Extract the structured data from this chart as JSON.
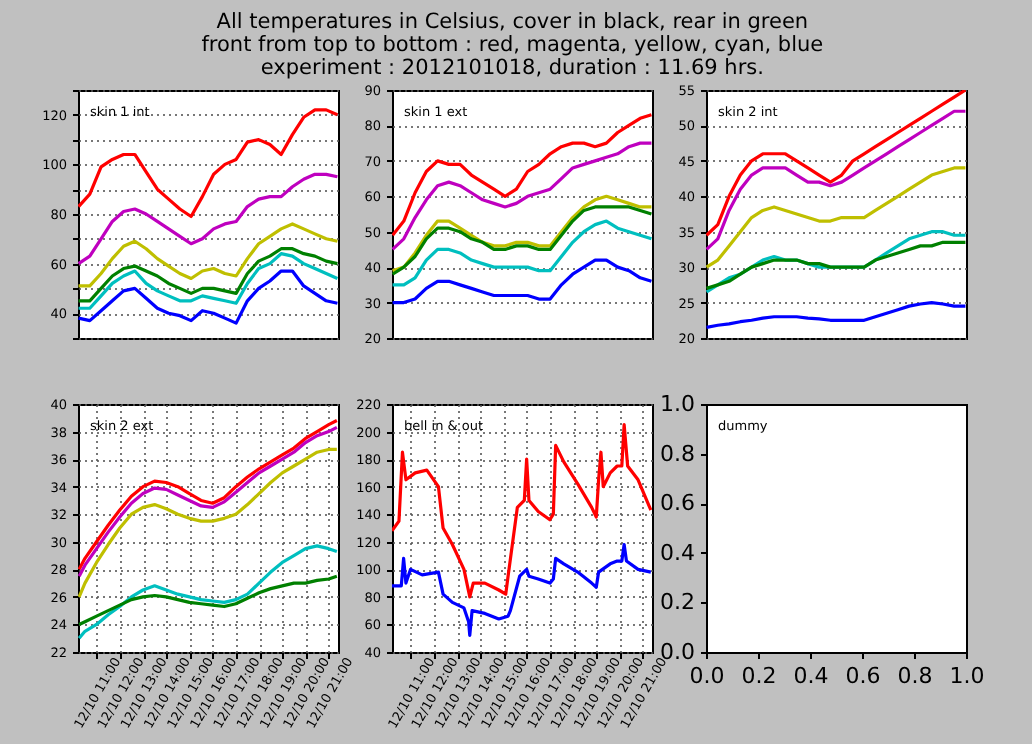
{
  "chart_data": [
    {
      "type": "line",
      "title": "skin 1 int",
      "annotations": [
        "All temperatures in Celsius, cover in black, rear in green",
        "front from top to bottom : red, magenta, yellow, cyan, blue",
        "experiment : 2012101018, duration : 11.69 hrs."
      ],
      "categories": [
        null,
        null,
        null,
        null,
        null,
        null,
        null,
        null,
        null,
        null,
        null,
        null,
        null,
        null,
        null,
        null,
        null,
        null,
        null,
        null,
        null,
        null,
        null,
        null
      ],
      "ylim": [
        30,
        130
      ],
      "yticks": [
        {
          "value": 30,
          "label": null
        },
        40,
        {
          "value": 50,
          "label": null
        },
        60,
        {
          "value": 70,
          "label": null
        },
        80,
        {
          "value": 90,
          "label": null
        },
        100,
        {
          "value": 110,
          "label": null
        },
        120,
        {
          "value": 130,
          "label": null
        }
      ],
      "grid": "y",
      "tick_labels": "y",
      "series": [
        {
          "color": "#ff0000",
          "values": [
            83,
            88,
            99,
            102,
            104,
            104,
            97,
            90,
            86,
            82,
            79,
            87,
            96,
            100,
            102,
            109,
            110,
            108,
            104,
            112,
            119,
            122,
            122,
            120
          ]
        },
        {
          "color": "#bf00bf",
          "values": [
            60,
            63,
            70,
            77,
            81,
            82,
            80,
            77,
            74,
            71,
            68,
            70,
            74,
            76,
            77,
            83,
            86,
            87,
            87,
            91,
            94,
            96,
            96,
            95
          ]
        },
        {
          "color": "#bfbf00",
          "values": [
            51,
            51,
            56,
            62,
            67,
            69,
            66,
            62,
            59,
            56,
            54,
            57,
            58,
            56,
            55,
            62,
            68,
            71,
            74,
            76,
            74,
            72,
            70,
            69
          ]
        },
        {
          "color": "#008000",
          "values": [
            45,
            45,
            50,
            55,
            58,
            59,
            57,
            55,
            52,
            50,
            48,
            50,
            50,
            49,
            48,
            56,
            61,
            63,
            66,
            66,
            64,
            63,
            61,
            60
          ]
        },
        {
          "color": "#00bfbf",
          "values": [
            42,
            42,
            47,
            52,
            55,
            57,
            52,
            49,
            47,
            45,
            45,
            47,
            46,
            45,
            44,
            52,
            58,
            60,
            64,
            63,
            60,
            58,
            56,
            54
          ]
        },
        {
          "color": "#0000ff",
          "values": [
            38,
            37,
            41,
            45,
            49,
            50,
            46,
            42,
            40,
            39,
            37,
            41,
            40,
            38,
            36,
            45,
            50,
            53,
            57,
            57,
            51,
            48,
            45,
            44
          ]
        }
      ]
    },
    {
      "type": "line",
      "title": "skin 1 ext",
      "categories": [
        null,
        null,
        null,
        null,
        null,
        null,
        null,
        null,
        null,
        null,
        null,
        null,
        null,
        null,
        null,
        null,
        null,
        null,
        null,
        null,
        null,
        null,
        null,
        null
      ],
      "ylim": [
        20,
        90
      ],
      "yticks": [
        20,
        30,
        40,
        50,
        60,
        70,
        80,
        90
      ],
      "grid": "y",
      "tick_labels": "y",
      "series": [
        {
          "color": "#ff0000",
          "values": [
            49,
            53,
            61,
            67,
            70,
            69,
            69,
            66,
            64,
            62,
            60,
            62,
            67,
            69,
            72,
            74,
            75,
            75,
            74,
            75,
            78,
            80,
            82,
            83
          ]
        },
        {
          "color": "#bf00bf",
          "values": [
            45,
            48,
            54,
            59,
            63,
            64,
            63,
            61,
            59,
            58,
            57,
            58,
            60,
            61,
            62,
            65,
            68,
            69,
            70,
            71,
            72,
            74,
            75,
            75
          ]
        },
        {
          "color": "#bfbf00",
          "values": [
            39,
            40,
            44,
            49,
            53,
            53,
            51,
            49,
            47,
            46,
            46,
            47,
            47,
            46,
            46,
            50,
            54,
            57,
            59,
            60,
            59,
            58,
            57,
            57
          ]
        },
        {
          "color": "#008000",
          "values": [
            38,
            40,
            43,
            48,
            51,
            51,
            50,
            48,
            47,
            45,
            45,
            46,
            46,
            45,
            45,
            49,
            53,
            56,
            57,
            57,
            57,
            57,
            56,
            55
          ]
        },
        {
          "color": "#00bfbf",
          "values": [
            35,
            35,
            37,
            42,
            45,
            45,
            44,
            42,
            41,
            40,
            40,
            40,
            40,
            39,
            39,
            43,
            47,
            50,
            52,
            53,
            51,
            50,
            49,
            48
          ]
        },
        {
          "color": "#0000ff",
          "values": [
            30,
            30,
            31,
            34,
            36,
            36,
            35,
            34,
            33,
            32,
            32,
            32,
            32,
            31,
            31,
            35,
            38,
            40,
            42,
            42,
            40,
            39,
            37,
            36
          ]
        }
      ]
    },
    {
      "type": "line",
      "title": "skin 2 int",
      "categories": [
        null,
        null,
        null,
        null,
        null,
        null,
        null,
        null,
        null,
        null,
        null,
        null,
        null,
        null,
        null,
        null,
        null,
        null,
        null,
        null,
        null,
        null,
        null,
        null
      ],
      "ylim": [
        20,
        55
      ],
      "yticks": [
        20,
        25,
        30,
        35,
        40,
        45,
        50,
        55
      ],
      "grid": "y",
      "tick_labels": "y",
      "series": [
        {
          "color": "#ff0000",
          "values": [
            34.5,
            36,
            40,
            43,
            45,
            46,
            46,
            46,
            45,
            44,
            43,
            42,
            43,
            45,
            46,
            47,
            48,
            49,
            50,
            51,
            52,
            53,
            54,
            55
          ]
        },
        {
          "color": "#bf00bf",
          "values": [
            32.5,
            34,
            38,
            41,
            43,
            44,
            44,
            44,
            43,
            42,
            42,
            41.5,
            42,
            43,
            44,
            45,
            46,
            47,
            48,
            49,
            50,
            51,
            52,
            52
          ]
        },
        {
          "color": "#bfbf00",
          "values": [
            30,
            31,
            33,
            35,
            37,
            38,
            38.5,
            38,
            37.5,
            37,
            36.5,
            36.5,
            37,
            37,
            37,
            38,
            39,
            40,
            41,
            42,
            43,
            43.5,
            44,
            44
          ]
        },
        {
          "color": "#00bfbf",
          "values": [
            26.5,
            27.5,
            28.5,
            29,
            30,
            31,
            31.5,
            31,
            31,
            30.5,
            30,
            30,
            30,
            30,
            30,
            31,
            32,
            33,
            34,
            34.5,
            35,
            35,
            34.5,
            34.5
          ]
        },
        {
          "color": "#008000",
          "values": [
            27,
            27.5,
            28,
            29,
            30,
            30.5,
            31,
            31,
            31,
            30.5,
            30.5,
            30,
            30,
            30,
            30,
            31,
            31.5,
            32,
            32.5,
            33,
            33,
            33.5,
            33.5,
            33.5
          ]
        },
        {
          "color": "#0000ff",
          "values": [
            21.5,
            21.8,
            22,
            22.3,
            22.5,
            22.8,
            23,
            23,
            23,
            22.8,
            22.7,
            22.5,
            22.5,
            22.5,
            22.5,
            23,
            23.5,
            24,
            24.5,
            24.8,
            25,
            24.8,
            24.5,
            24.5
          ]
        }
      ]
    },
    {
      "type": "line",
      "title": "skin 2 ext",
      "x": [
        "--12-10T10:15",
        "--12-10T10:30",
        "--12-10T11:00",
        "--12-10T11:30",
        "--12-10T12:00",
        "--12-10T12:30",
        "--12-10T13:00",
        "--12-10T13:30",
        "--12-10T14:00",
        "--12-10T14:30",
        "--12-10T15:00",
        "--12-10T15:30",
        "--12-10T16:00",
        "--12-10T16:30",
        "--12-10T17:00",
        "--12-10T17:30",
        "--12-10T18:00",
        "--12-10T18:30",
        "--12-10T19:00",
        "--12-10T19:30",
        "--12-10T20:00",
        "--12-10T20:30",
        "--12-10T21:00",
        "--12-10T21:21"
      ],
      "xlim": [
        "--12-10T10:12",
        "--12-10T21:24"
      ],
      "xticks": [
        {
          "value": "--12-10T11:00",
          "label": "12/10 11:00"
        },
        {
          "value": "--12-10T12:00",
          "label": "12/10 12:00"
        },
        {
          "value": "--12-10T13:00",
          "label": "12/10 13:00"
        },
        {
          "value": "--12-10T14:00",
          "label": "12/10 14:00"
        },
        {
          "value": "--12-10T15:00",
          "label": "12/10 15:00"
        },
        {
          "value": "--12-10T16:00",
          "label": "12/10 16:00"
        },
        {
          "value": "--12-10T17:00",
          "label": "12/10 17:00"
        },
        {
          "value": "--12-10T18:00",
          "label": "12/10 18:00"
        },
        {
          "value": "--12-10T19:00",
          "label": "12/10 19:00"
        },
        {
          "value": "--12-10T20:00",
          "label": "12/10 20:00"
        },
        {
          "value": "--12-10T21:00",
          "label": "12/10 21:00"
        }
      ],
      "ylim": [
        22,
        40
      ],
      "yticks": [
        22,
        24,
        26,
        28,
        30,
        32,
        34,
        36,
        38,
        40
      ],
      "grid": true,
      "series": [
        {
          "color": "#ff0000",
          "values": [
            28,
            28.8,
            30,
            31.2,
            32.3,
            33.3,
            34,
            34.4,
            34.3,
            34,
            33.5,
            33,
            32.8,
            33.2,
            34,
            34.7,
            35.3,
            35.8,
            36.3,
            36.8,
            37.5,
            38,
            38.5,
            38.8
          ]
        },
        {
          "color": "#bf00bf",
          "values": [
            27.5,
            28.3,
            29.5,
            30.7,
            31.8,
            32.8,
            33.5,
            33.9,
            33.8,
            33.4,
            33,
            32.6,
            32.5,
            32.9,
            33.6,
            34.3,
            35,
            35.5,
            36,
            36.5,
            37.2,
            37.7,
            38,
            38.3
          ]
        },
        {
          "color": "#bfbf00",
          "values": [
            26,
            27,
            28.5,
            29.8,
            31,
            32,
            32.5,
            32.7,
            32.4,
            32,
            31.7,
            31.5,
            31.5,
            31.7,
            32,
            32.7,
            33.5,
            34.3,
            35,
            35.5,
            36,
            36.5,
            36.7,
            36.7
          ]
        },
        {
          "color": "#00bfbf",
          "values": [
            23,
            23.5,
            24,
            24.7,
            25.3,
            26,
            26.5,
            26.8,
            26.5,
            26.2,
            26,
            25.8,
            25.7,
            25.6,
            25.8,
            26.2,
            27,
            27.8,
            28.5,
            29,
            29.5,
            29.7,
            29.5,
            29.3
          ]
        },
        {
          "color": "#008000",
          "values": [
            24,
            24.2,
            24.6,
            25,
            25.4,
            25.8,
            26,
            26.1,
            26,
            25.8,
            25.6,
            25.5,
            25.4,
            25.3,
            25.5,
            25.9,
            26.3,
            26.6,
            26.8,
            27,
            27,
            27.2,
            27.3,
            27.5
          ]
        }
      ]
    },
    {
      "type": "line",
      "title": "bell in & out",
      "xlim": [
        "--12-10T10:12",
        "--12-10T21:24"
      ],
      "xticks": [
        {
          "value": "--12-10T11:00",
          "label": "12/10 11:00"
        },
        {
          "value": "--12-10T12:00",
          "label": "12/10 12:00"
        },
        {
          "value": "--12-10T13:00",
          "label": "12/10 13:00"
        },
        {
          "value": "--12-10T14:00",
          "label": "12/10 14:00"
        },
        {
          "value": "--12-10T15:00",
          "label": "12/10 15:00"
        },
        {
          "value": "--12-10T16:00",
          "label": "12/10 16:00"
        },
        {
          "value": "--12-10T17:00",
          "label": "12/10 17:00"
        },
        {
          "value": "--12-10T18:00",
          "label": "12/10 18:00"
        },
        {
          "value": "--12-10T19:00",
          "label": "12/10 19:00"
        },
        {
          "value": "--12-10T20:00",
          "label": "12/10 20:00"
        },
        {
          "value": "--12-10T21:00",
          "label": "12/10 21:00"
        }
      ],
      "ylim": [
        40,
        220
      ],
      "yticks": [
        40,
        60,
        80,
        100,
        120,
        140,
        160,
        180,
        200,
        220
      ],
      "grid": true,
      "series": [
        {
          "color": "#ff0000",
          "x": [
            "--12-10T10:12",
            "--12-10T10:30",
            "--12-10T10:39",
            "--12-10T10:48",
            "--12-10T11:12",
            "--12-10T11:42",
            "--12-10T12:12",
            "--12-10T12:24",
            "--12-10T12:48",
            "--12-10T13:18",
            "--12-10T13:33",
            "--12-10T13:42",
            "--12-10T14:12",
            "--12-10T14:48",
            "--12-10T15:06",
            "--12-10T15:12",
            "--12-10T15:36",
            "--12-10T15:54",
            "--12-10T16:00",
            "--12-10T16:06",
            "--12-10T16:30",
            "--12-10T17:00",
            "--12-10T17:09",
            "--12-10T17:15",
            "--12-10T17:36",
            "--12-10T18:12",
            "--12-10T18:48",
            "--12-10T19:00",
            "--12-10T19:06",
            "--12-10T19:12",
            "--12-10T19:18",
            "--12-10T19:36",
            "--12-10T19:54",
            "--12-10T20:06",
            "--12-10T20:12",
            "--12-10T20:21",
            "--12-10T20:48",
            "--12-10T21:21"
          ],
          "values": [
            128,
            135,
            185,
            165,
            170,
            172,
            160,
            130,
            118,
            100,
            80,
            90,
            90,
            85,
            82,
            95,
            145,
            150,
            180,
            150,
            142,
            136,
            140,
            190,
            178,
            162,
            145,
            138,
            165,
            185,
            160,
            170,
            175,
            175,
            205,
            175,
            165,
            143
          ]
        },
        {
          "color": "#0000ff",
          "x": [
            "--12-10T10:12",
            "--12-10T10:36",
            "--12-10T10:42",
            "--12-10T10:48",
            "--12-10T11:00",
            "--12-10T11:30",
            "--12-10T12:12",
            "--12-10T12:24",
            "--12-10T12:48",
            "--12-10T13:18",
            "--12-10T13:30",
            "--12-10T13:33",
            "--12-10T13:39",
            "--12-10T14:12",
            "--12-10T14:48",
            "--12-10T15:12",
            "--12-10T15:18",
            "--12-10T15:42",
            "--12-10T16:00",
            "--12-10T16:06",
            "--12-10T16:30",
            "--12-10T17:00",
            "--12-10T17:09",
            "--12-10T17:15",
            "--12-10T17:36",
            "--12-10T18:12",
            "--12-10T18:48",
            "--12-10T19:00",
            "--12-10T19:06",
            "--12-10T19:36",
            "--12-10T19:54",
            "--12-10T20:06",
            "--12-10T20:12",
            "--12-10T20:18",
            "--12-10T20:48",
            "--12-10T21:21"
          ],
          "values": [
            88,
            88,
            108,
            90,
            100,
            96,
            98,
            82,
            76,
            72,
            62,
            52,
            70,
            68,
            64,
            66,
            70,
            95,
            100,
            95,
            93,
            90,
            93,
            108,
            104,
            98,
            90,
            87,
            98,
            104,
            106,
            106,
            118,
            106,
            100,
            98
          ]
        }
      ]
    },
    {
      "type": "line",
      "title": "dummy",
      "xlim": [
        0,
        1
      ],
      "ylim": [
        0,
        1
      ],
      "xticks": [
        {
          "value": 0,
          "label": "0.0"
        },
        0.2,
        0.4,
        0.6,
        0.8,
        {
          "value": 1,
          "label": "1.0"
        }
      ],
      "yticks": [
        {
          "value": 0,
          "label": "0.0"
        },
        0.2,
        0.4,
        0.6,
        0.8,
        {
          "value": 1,
          "label": "1.0"
        }
      ]
    }
  ]
}
